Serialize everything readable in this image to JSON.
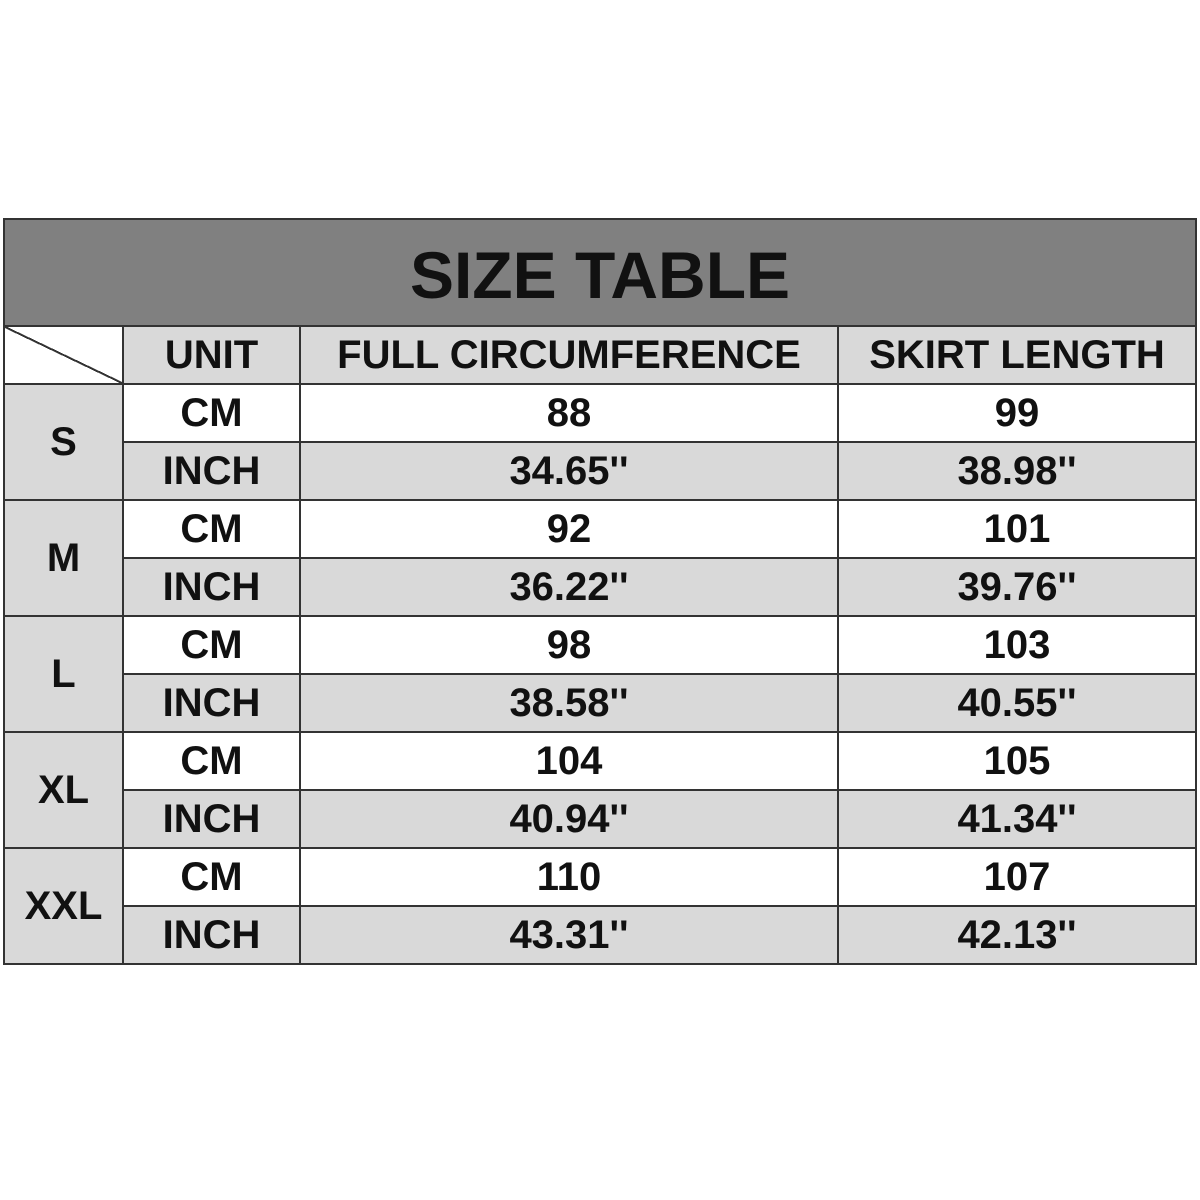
{
  "title": "SIZE TABLE",
  "headers": [
    "UNIT",
    "FULL CIRCUMFERENCE",
    "SKIRT LENGTH"
  ],
  "colors": {
    "title_bg": "#808080",
    "shade": "#d9d9d9",
    "border": "#333333"
  },
  "rows": [
    {
      "size": "S",
      "cm": {
        "unit": "CM",
        "circ": "88",
        "length": "99"
      },
      "inch": {
        "unit": "INCH",
        "circ": "34.65''",
        "length": "38.98''"
      }
    },
    {
      "size": "M",
      "cm": {
        "unit": "CM",
        "circ": "92",
        "length": "101"
      },
      "inch": {
        "unit": "INCH",
        "circ": "36.22''",
        "length": "39.76''"
      }
    },
    {
      "size": "L",
      "cm": {
        "unit": "CM",
        "circ": "98",
        "length": "103"
      },
      "inch": {
        "unit": "INCH",
        "circ": "38.58''",
        "length": "40.55''"
      }
    },
    {
      "size": "XL",
      "cm": {
        "unit": "CM",
        "circ": "104",
        "length": "105"
      },
      "inch": {
        "unit": "INCH",
        "circ": "40.94''",
        "length": "41.34''"
      }
    },
    {
      "size": "XXL",
      "cm": {
        "unit": "CM",
        "circ": "110",
        "length": "107"
      },
      "inch": {
        "unit": "INCH",
        "circ": "43.31''",
        "length": "42.13''"
      }
    }
  ]
}
